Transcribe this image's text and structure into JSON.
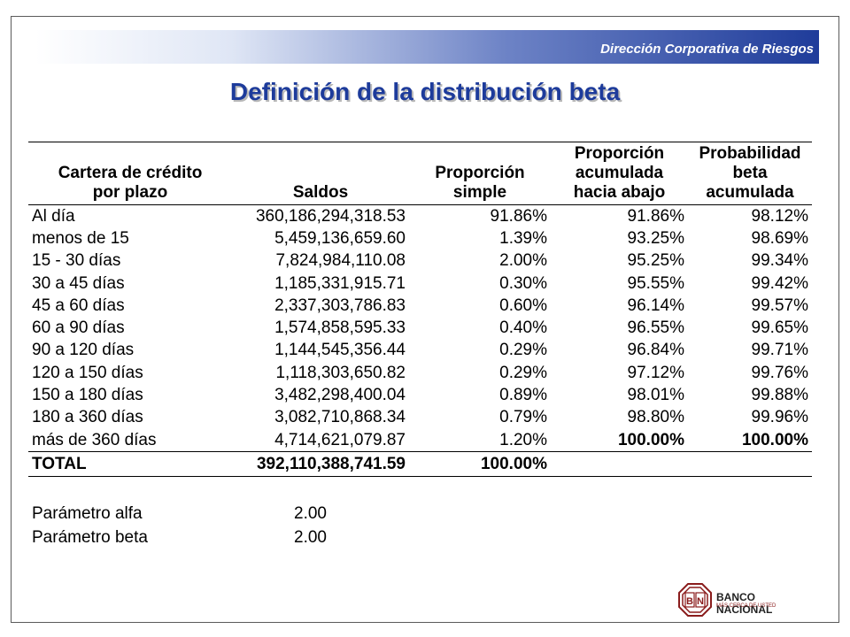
{
  "header": {
    "banner_text": "Dirección Corporativa de Riesgos",
    "title": "Definición de la distribución beta"
  },
  "table": {
    "headers": [
      [
        "Cartera de crédito",
        "por plazo"
      ],
      [
        "Saldos"
      ],
      [
        "Proporción",
        "simple"
      ],
      [
        "Proporción",
        "acumulada",
        "hacia abajo"
      ],
      [
        "Probabilidad",
        "beta",
        "acumulada"
      ]
    ],
    "rows": [
      [
        "Al día",
        "360,186,294,318.53",
        "91.86%",
        "91.86%",
        "98.12%"
      ],
      [
        "menos de 15",
        "5,459,136,659.60",
        "1.39%",
        "93.25%",
        "98.69%"
      ],
      [
        "15 - 30 días",
        "7,824,984,110.08",
        "2.00%",
        "95.25%",
        "99.34%"
      ],
      [
        "30 a 45 días",
        "1,185,331,915.71",
        "0.30%",
        "95.55%",
        "99.42%"
      ],
      [
        "45 a 60 días",
        "2,337,303,786.83",
        "0.60%",
        "96.14%",
        "99.57%"
      ],
      [
        "60 a 90 días",
        "1,574,858,595.33",
        "0.40%",
        "96.55%",
        "99.65%"
      ],
      [
        "90 a 120 días",
        "1,144,545,356.44",
        "0.29%",
        "96.84%",
        "99.71%"
      ],
      [
        "120 a 150 días",
        "1,118,303,650.82",
        "0.29%",
        "97.12%",
        "99.76%"
      ],
      [
        "150 a 180 días",
        "3,482,298,400.04",
        "0.89%",
        "98.01%",
        "99.88%"
      ],
      [
        "180 a 360 días",
        "3,082,710,868.34",
        "0.79%",
        "98.80%",
        "99.96%"
      ],
      [
        "más de 360 días",
        "4,714,621,079.87",
        "1.20%",
        "100.00%",
        "100.00%"
      ]
    ],
    "total": [
      "TOTAL",
      "392,110,388,741.59",
      "100.00%",
      "",
      ""
    ]
  },
  "params": [
    {
      "label": "Parámetro alfa",
      "value": "2.00"
    },
    {
      "label": "Parámetro beta",
      "value": "2.00"
    }
  ],
  "logo": {
    "letters": "BN",
    "name": "BANCO NACIONAL",
    "slogan": "MÁS CERCA DE USTED"
  },
  "colors": {
    "title": "#1d3b9b",
    "banner_dark": "#1f3c9a",
    "logo_red": "#8a1c1c"
  }
}
